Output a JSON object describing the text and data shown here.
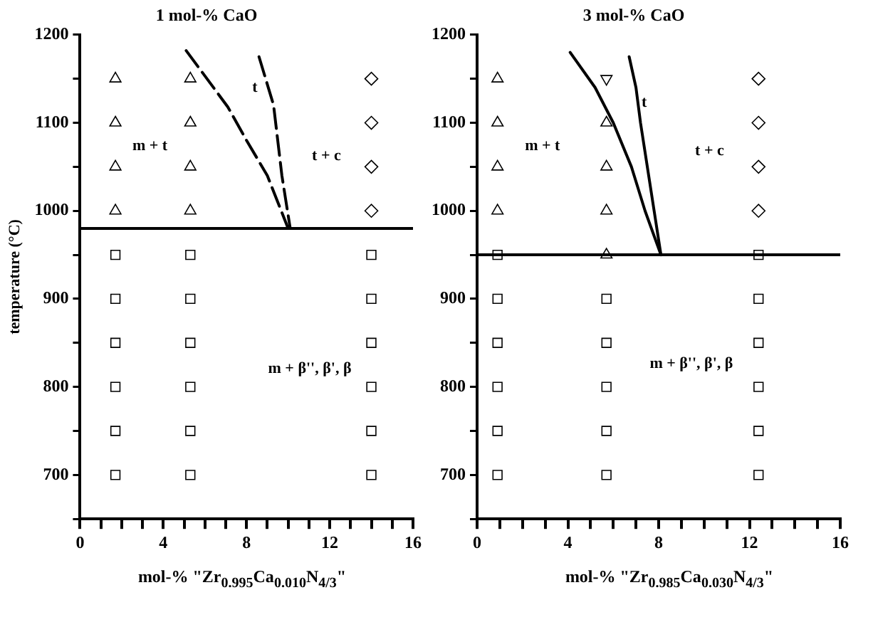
{
  "chart_data": [
    {
      "type": "scatter",
      "title": "1 mol-% CaO",
      "xlabel": "mol-%  \"Zr$_{0.995}$Ca$_{0.010}$N$_{4/3}$\"",
      "ylabel": "temperature (°C)",
      "xlim": [
        0,
        16
      ],
      "ylim": [
        650,
        1200
      ],
      "xticks": [
        0,
        {
          "value": 1,
          "label": null
        },
        {
          "value": 2,
          "label": null
        },
        {
          "value": 3,
          "label": null
        },
        4,
        {
          "value": 5,
          "label": null
        },
        {
          "value": 6,
          "label": null
        },
        {
          "value": 7,
          "label": null
        },
        8,
        {
          "value": 9,
          "label": null
        },
        {
          "value": 10,
          "label": null
        },
        {
          "value": 11,
          "label": null
        },
        12,
        {
          "value": 13,
          "label": null
        },
        {
          "value": 14,
          "label": null
        },
        {
          "value": 15,
          "label": null
        },
        16
      ],
      "yticks": [
        {
          "value": 650,
          "label": null
        },
        700,
        {
          "value": 750,
          "label": null
        },
        800,
        {
          "value": 850,
          "label": null
        },
        900,
        {
          "value": 950,
          "label": null
        },
        1000,
        {
          "value": 1050,
          "label": null
        },
        1100,
        {
          "value": 1150,
          "label": null
        },
        1200
      ],
      "grid": false,
      "legend": false,
      "series": [
        {
          "marker": "triangle",
          "color": "#000000",
          "x": [
            1.7,
            1.7,
            1.7,
            1.7,
            5.3,
            5.3,
            5.3,
            5.3
          ],
          "values": [
            1000,
            1050,
            1100,
            1150,
            1000,
            1050,
            1100,
            1150
          ]
        },
        {
          "marker": "diamond",
          "color": "#000000",
          "x": [
            14,
            14,
            14,
            14
          ],
          "values": [
            1000,
            1050,
            1100,
            1150
          ]
        },
        {
          "marker": "square",
          "color": "#000000",
          "x": [
            1.7,
            1.7,
            1.7,
            1.7,
            1.7,
            1.7,
            5.3,
            5.3,
            5.3,
            5.3,
            5.3,
            5.3,
            14,
            14,
            14,
            14,
            14,
            14
          ],
          "values": [
            700,
            750,
            800,
            850,
            900,
            950,
            700,
            750,
            800,
            850,
            900,
            950,
            700,
            750,
            800,
            850,
            900,
            950
          ]
        },
        {
          "type": "line",
          "marker": "none",
          "line_style": "dashed",
          "color": "#000000",
          "x": [
            5.1,
            7.1,
            8.0,
            9.0,
            10
          ],
          "values": [
            1182,
            1118,
            1080,
            1040,
            980
          ]
        },
        {
          "type": "line",
          "marker": "none",
          "line_style": "dashed",
          "color": "#000000",
          "x": [
            8.6,
            9.3,
            9.7,
            10.1
          ],
          "values": [
            1175,
            1120,
            1040,
            980
          ]
        }
      ],
      "ref_lines": [
        {
          "axis": "y",
          "value": 980,
          "color": "#000000"
        }
      ],
      "annotations": [
        "m + t",
        "t",
        "t + c",
        "m + β'', β', β"
      ]
    },
    {
      "type": "scatter",
      "title": "3 mol-% CaO",
      "xlabel": "mol-% \"Zr$_{0.985}$Ca$_{0.030}$N$_{4/3}$\"",
      "xlim": [
        0,
        16
      ],
      "ylim": [
        650,
        1200
      ],
      "xticks": [
        0,
        {
          "value": 1,
          "label": null
        },
        {
          "value": 2,
          "label": null
        },
        {
          "value": 3,
          "label": null
        },
        4,
        {
          "value": 5,
          "label": null
        },
        {
          "value": 6,
          "label": null
        },
        {
          "value": 7,
          "label": null
        },
        8,
        {
          "value": 9,
          "label": null
        },
        {
          "value": 10,
          "label": null
        },
        {
          "value": 11,
          "label": null
        },
        12,
        {
          "value": 13,
          "label": null
        },
        {
          "value": 14,
          "label": null
        },
        {
          "value": 15,
          "label": null
        },
        16
      ],
      "yticks": [
        {
          "value": 650,
          "label": null
        },
        700,
        {
          "value": 750,
          "label": null
        },
        800,
        {
          "value": 850,
          "label": null
        },
        900,
        {
          "value": 950,
          "label": null
        },
        1000,
        {
          "value": 1050,
          "label": null
        },
        1100,
        {
          "value": 1150,
          "label": null
        },
        1200
      ],
      "grid": false,
      "legend": false,
      "series": [
        {
          "marker": "triangle",
          "color": "#000000",
          "x": [
            0.9,
            0.9,
            0.9,
            0.9,
            5.7,
            5.7,
            5.7,
            5.7
          ],
          "values": [
            1000,
            1050,
            1100,
            1150,
            950,
            1000,
            1050,
            1100
          ]
        },
        {
          "marker": "triangle-down",
          "color": "#000000",
          "x": [
            5.7
          ],
          "values": [
            1150
          ]
        },
        {
          "marker": "diamond",
          "color": "#000000",
          "x": [
            12.4,
            12.4,
            12.4,
            12.4
          ],
          "values": [
            1000,
            1050,
            1100,
            1150
          ]
        },
        {
          "marker": "square",
          "color": "#000000",
          "x": [
            0.9,
            0.9,
            0.9,
            0.9,
            0.9,
            0.9,
            5.7,
            5.7,
            5.7,
            5.7,
            5.7,
            12.4,
            12.4,
            12.4,
            12.4,
            12.4,
            12.4
          ],
          "values": [
            700,
            750,
            800,
            850,
            900,
            950,
            700,
            750,
            800,
            850,
            900,
            700,
            750,
            800,
            850,
            900,
            950
          ]
        },
        {
          "type": "line",
          "marker": "none",
          "line_style": "solid",
          "color": "#000000",
          "x": [
            4.1,
            5.2,
            6.0,
            6.8,
            7.4,
            8.1
          ],
          "values": [
            1180,
            1140,
            1100,
            1050,
            1000,
            950
          ]
        },
        {
          "type": "line",
          "marker": "none",
          "line_style": "solid",
          "color": "#000000",
          "x": [
            6.7,
            7.0,
            7.2,
            7.5,
            7.8,
            8.1
          ],
          "values": [
            1175,
            1140,
            1100,
            1050,
            1000,
            950
          ]
        }
      ],
      "ref_lines": [
        {
          "axis": "y",
          "value": 950,
          "color": "#000000"
        }
      ],
      "annotations": [
        "m + t",
        "t",
        "t + c",
        "m + β'', β', β"
      ]
    }
  ]
}
